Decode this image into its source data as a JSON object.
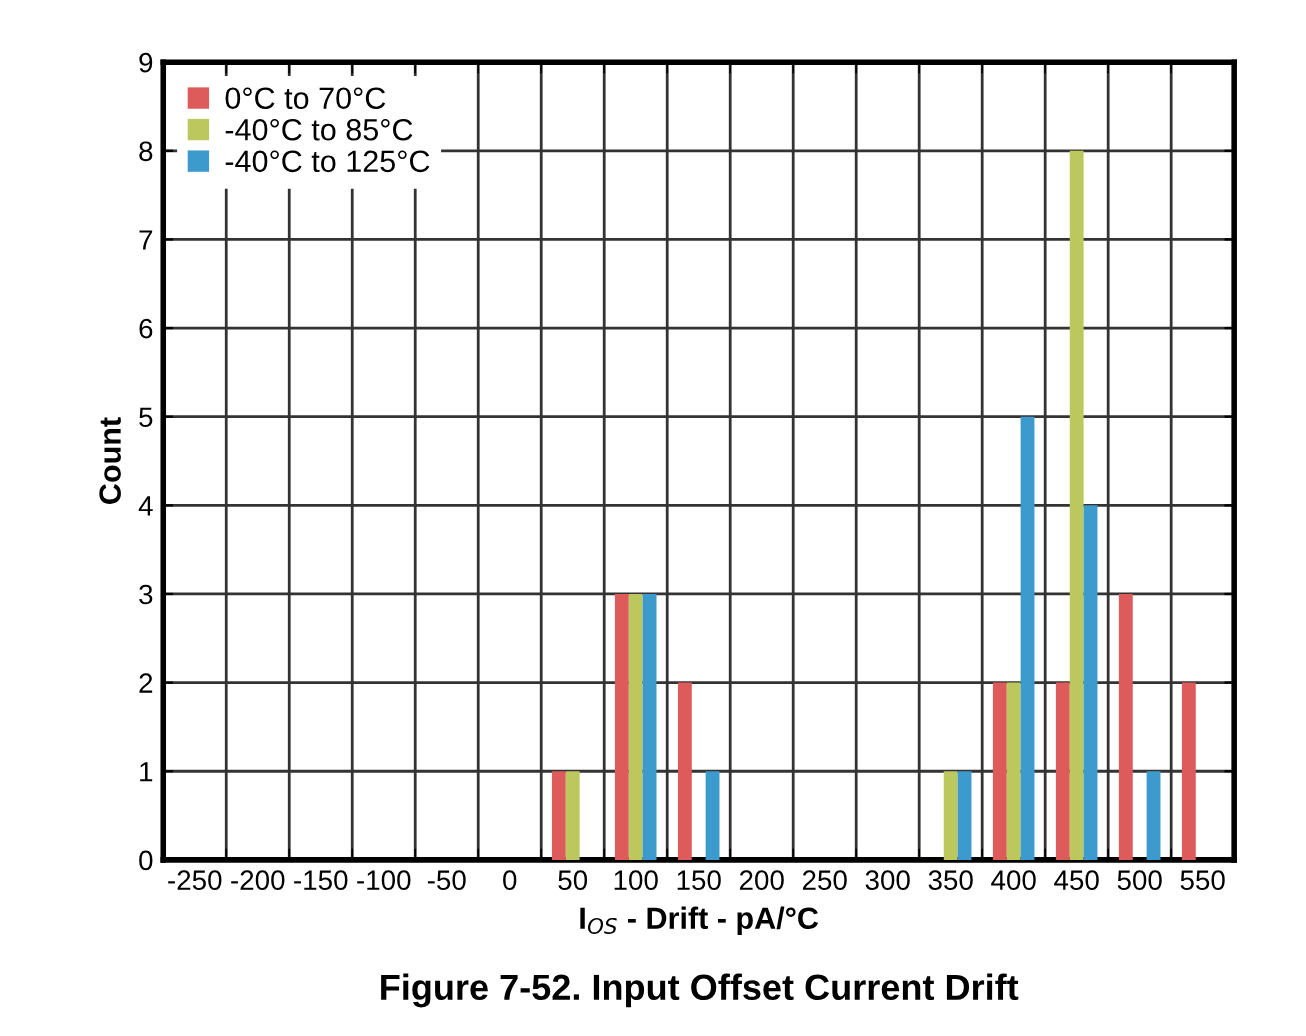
{
  "chart_data": {
    "type": "bar",
    "title": "Figure 7-52. Input Offset Current Drift",
    "xlabel": "I$_{OS}$ - Drift - pA/°C",
    "ylabel": "Count",
    "categories": [
      "-250",
      "-200",
      "-150",
      "-100",
      "-50",
      "0",
      "50",
      "100",
      "150",
      "200",
      "250",
      "300",
      "350",
      "400",
      "450",
      "500",
      "550"
    ],
    "series": [
      {
        "name": "0°C to 70°C",
        "color": "#dd5b5b",
        "values": [
          0,
          0,
          0,
          0,
          0,
          0,
          1,
          3,
          2,
          0,
          0,
          0,
          0,
          2,
          2,
          3,
          2
        ]
      },
      {
        "name": "-40°C to 85°C",
        "color": "#bcc75e",
        "values": [
          0,
          0,
          0,
          0,
          0,
          0,
          1,
          3,
          0,
          0,
          0,
          0,
          1,
          2,
          8,
          0,
          0
        ]
      },
      {
        "name": "-40°C to 125°C",
        "color": "#3d9acc",
        "values": [
          0,
          0,
          0,
          0,
          0,
          0,
          0,
          3,
          1,
          0,
          0,
          0,
          1,
          5,
          4,
          1,
          0
        ]
      }
    ],
    "ylim": [
      0,
      9
    ],
    "yticks": [
      0,
      1,
      2,
      3,
      4,
      5,
      6,
      7,
      8,
      9
    ],
    "grid": true,
    "legend": "top left"
  }
}
